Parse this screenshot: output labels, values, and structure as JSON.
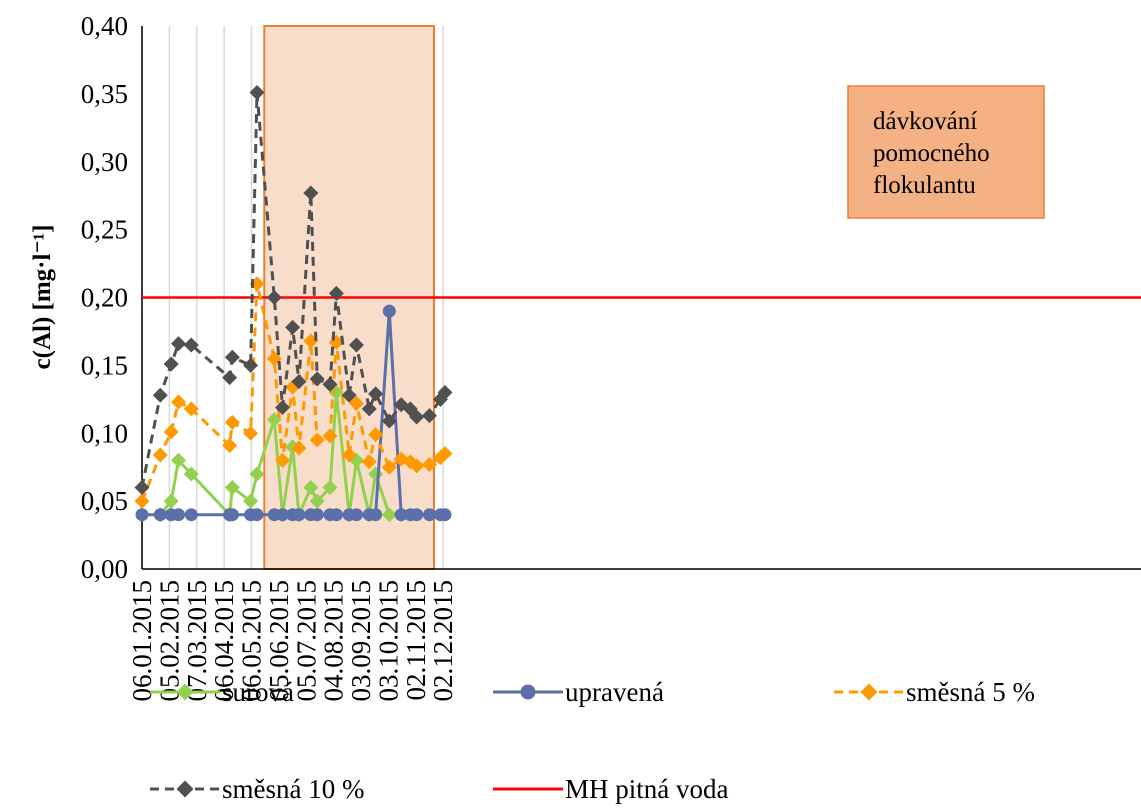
{
  "chart_data": {
    "type": "line",
    "ylabel": "c(Al) [mg·l⁻¹]",
    "ylim": [
      0,
      0.4
    ],
    "y_ticks": [
      "0,00",
      "0,05",
      "0,10",
      "0,15",
      "0,20",
      "0,25",
      "0,30",
      "0,35",
      "0,40"
    ],
    "x_tick_labels": [
      "06.01.2015",
      "05.02.2015",
      "07.03.2015",
      "06.04.2015",
      "06.05.2015",
      "05.06.2015",
      "05.07.2015",
      "04.08.2015",
      "03.09.2015",
      "03.10.2015",
      "02.11.2015",
      "02.12.2015"
    ],
    "x_range": [
      "2015-01-06",
      "2015-12-02"
    ],
    "grid": "vertical",
    "legend_position": "bottom",
    "shaded_region": {
      "start": "2015-05-20",
      "end": "2015-11-22",
      "label_lines": [
        "dávkování",
        "pomocného",
        "flokulantu"
      ],
      "color": "#F8DECA",
      "border": "#ED7D31"
    },
    "reference_line": {
      "name": "MH pitná voda",
      "value": 0.2,
      "color": "#FF0000"
    },
    "series": [
      {
        "name": "surová",
        "color": "#92D050",
        "dash": "solid",
        "marker": "diamond",
        "x": [
          "2015-01-26",
          "2015-02-07",
          "2015-02-15",
          "2015-03-01",
          "2015-04-12",
          "2015-04-15",
          "2015-05-05",
          "2015-05-12",
          "2015-05-31",
          "2015-06-09",
          "2015-06-20",
          "2015-06-27",
          "2015-07-10",
          "2015-07-17",
          "2015-07-31",
          "2015-08-07",
          "2015-08-21",
          "2015-08-29",
          "2015-09-12",
          "2015-09-19",
          "2015-10-04",
          "2015-10-17"
        ],
        "y": [
          0.04,
          0.05,
          0.08,
          0.07,
          0.04,
          0.06,
          0.05,
          0.07,
          0.11,
          0.04,
          0.09,
          0.04,
          0.06,
          0.05,
          0.06,
          0.13,
          0.04,
          0.08,
          0.04,
          0.07,
          0.04,
          0.04
        ]
      },
      {
        "name": "upravená",
        "color": "#5B6FA8",
        "dash": "solid",
        "marker": "circle",
        "x": [
          "2015-01-06",
          "2015-01-26",
          "2015-02-07",
          "2015-02-15",
          "2015-03-01",
          "2015-04-12",
          "2015-04-15",
          "2015-05-05",
          "2015-05-12",
          "2015-05-31",
          "2015-06-09",
          "2015-06-20",
          "2015-06-27",
          "2015-07-10",
          "2015-07-17",
          "2015-07-31",
          "2015-08-07",
          "2015-08-21",
          "2015-08-29",
          "2015-09-12",
          "2015-09-19",
          "2015-10-04",
          "2015-10-17",
          "2015-10-27",
          "2015-11-03",
          "2015-11-17",
          "2015-11-29",
          "2015-12-04"
        ],
        "y": [
          0.04,
          0.04,
          0.04,
          0.04,
          0.04,
          0.04,
          0.04,
          0.04,
          0.04,
          0.04,
          0.04,
          0.04,
          0.04,
          0.04,
          0.04,
          0.04,
          0.04,
          0.04,
          0.04,
          0.04,
          0.04,
          0.19,
          0.04,
          0.04,
          0.04,
          0.04,
          0.04,
          0.04
        ]
      },
      {
        "name": "směsná 5 %",
        "color": "#FF9900",
        "dash": "dashed",
        "marker": "diamond",
        "x": [
          "2015-01-06",
          "2015-01-26",
          "2015-02-07",
          "2015-02-15",
          "2015-03-01",
          "2015-04-12",
          "2015-04-15",
          "2015-05-05",
          "2015-05-12",
          "2015-05-31",
          "2015-06-09",
          "2015-06-20",
          "2015-06-27",
          "2015-07-10",
          "2015-07-17",
          "2015-07-31",
          "2015-08-07",
          "2015-08-21",
          "2015-08-29",
          "2015-09-12",
          "2015-09-19",
          "2015-10-04",
          "2015-10-17",
          "2015-10-27",
          "2015-11-03",
          "2015-11-17",
          "2015-11-29",
          "2015-12-04"
        ],
        "y": [
          0.05,
          0.084,
          0.101,
          0.123,
          0.118,
          0.091,
          0.108,
          0.1,
          0.21,
          0.155,
          0.08,
          0.134,
          0.089,
          0.168,
          0.095,
          0.098,
          0.167,
          0.084,
          0.122,
          0.079,
          0.099,
          0.075,
          0.081,
          0.079,
          0.076,
          0.077,
          0.082,
          0.085
        ]
      },
      {
        "name": "směsná 10 %",
        "color": "#505050",
        "dash": "dashed",
        "marker": "diamond",
        "x": [
          "2015-01-06",
          "2015-01-26",
          "2015-02-07",
          "2015-02-15",
          "2015-03-01",
          "2015-04-12",
          "2015-04-15",
          "2015-05-05",
          "2015-05-12",
          "2015-05-31",
          "2015-06-09",
          "2015-06-20",
          "2015-06-27",
          "2015-07-10",
          "2015-07-17",
          "2015-07-31",
          "2015-08-07",
          "2015-08-21",
          "2015-08-29",
          "2015-09-12",
          "2015-09-19",
          "2015-10-04",
          "2015-10-17",
          "2015-10-27",
          "2015-11-03",
          "2015-11-17",
          "2015-11-29",
          "2015-12-04"
        ],
        "y": [
          0.06,
          0.128,
          0.151,
          0.166,
          0.165,
          0.141,
          0.156,
          0.15,
          0.351,
          0.2,
          0.119,
          0.178,
          0.138,
          0.277,
          0.14,
          0.136,
          0.203,
          0.128,
          0.165,
          0.118,
          0.129,
          0.109,
          0.121,
          0.118,
          0.112,
          0.113,
          0.125,
          0.13
        ]
      }
    ]
  }
}
